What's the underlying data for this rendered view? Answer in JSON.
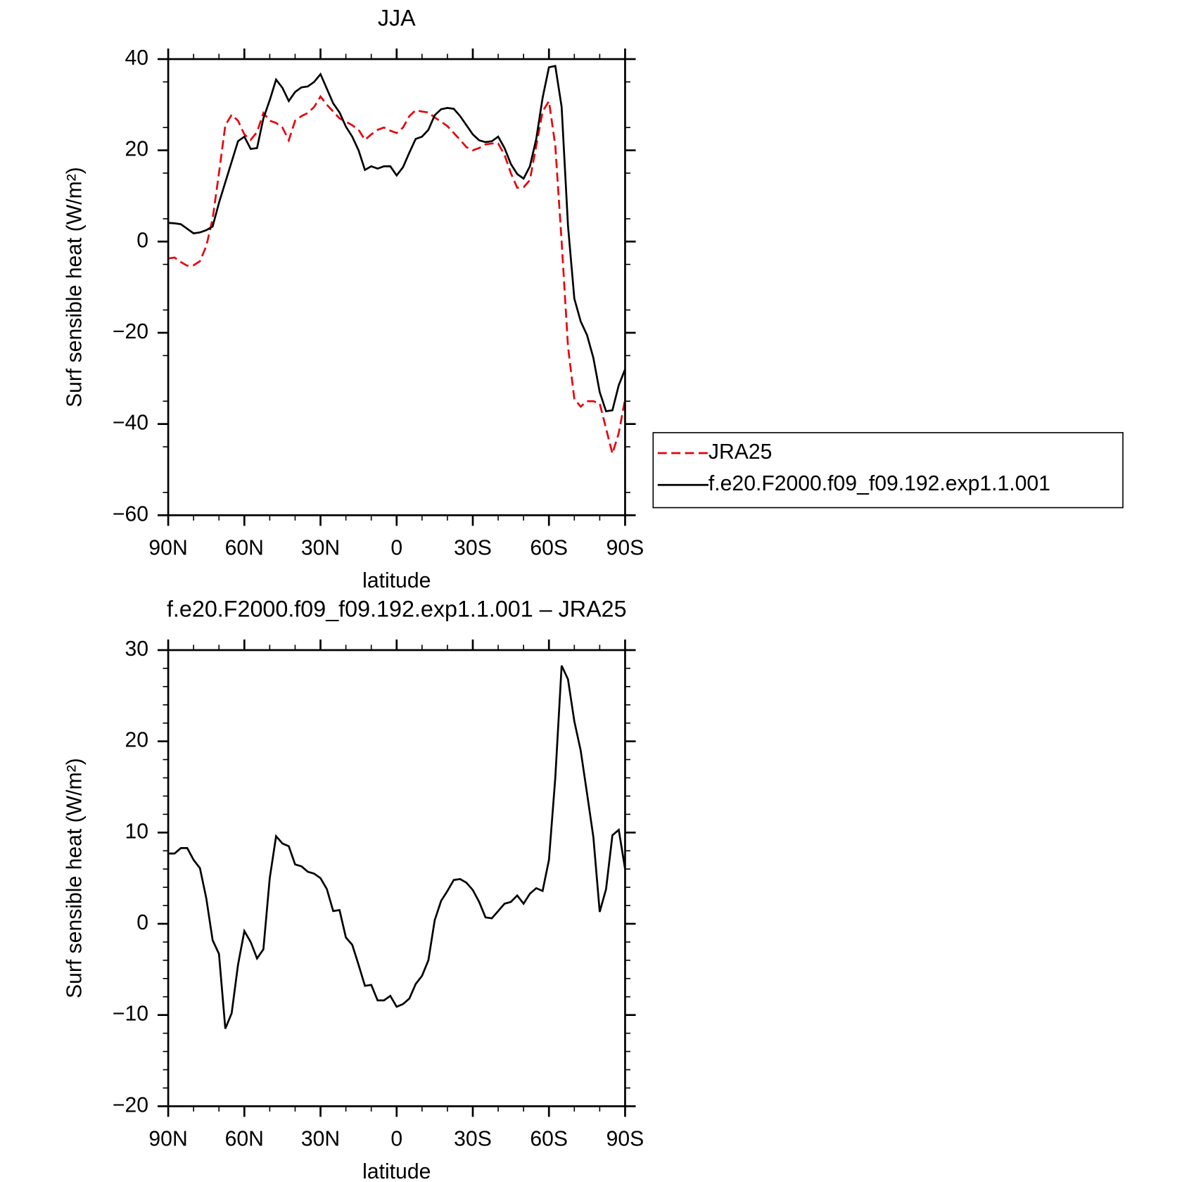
{
  "chart_data": [
    {
      "type": "line",
      "title": "JJA",
      "xlabel": "latitude",
      "ylabel": "Surf sensible heat (W/m²)",
      "x": [
        90,
        87.5,
        85,
        82.5,
        80,
        77.5,
        75,
        72.5,
        70,
        67.5,
        65,
        62.5,
        60,
        57.5,
        55,
        52.5,
        50,
        47.5,
        45,
        42.5,
        40,
        37.5,
        35,
        32.5,
        30,
        27.5,
        25,
        22.5,
        20,
        17.5,
        15,
        12.5,
        10,
        7.5,
        5,
        2.5,
        0,
        -2.5,
        -5,
        -7.5,
        -10,
        -12.5,
        -15,
        -17.5,
        -20,
        -22.5,
        -25,
        -27.5,
        -30,
        -32.5,
        -35,
        -37.5,
        -40,
        -42.5,
        -45,
        -47.5,
        -50,
        -52.5,
        -55,
        -57.5,
        -60,
        -62.5,
        -65,
        -67.5,
        -70,
        -72.5,
        -75,
        -77.5,
        -80,
        -82.5,
        -85,
        -87.5,
        -90
      ],
      "series": [
        {
          "name": "JRA25",
          "color": "#e8000b",
          "linestyle": "dashed",
          "values": [
            -3.7,
            -3.5,
            -4.5,
            -5.3,
            -5.2,
            -4.3,
            -1,
            5,
            15,
            25.5,
            27.8,
            26.5,
            23.5,
            22.3,
            24,
            28.2,
            26.5,
            26,
            25,
            22.2,
            26.5,
            27.5,
            28.2,
            29.5,
            31.8,
            30,
            28.5,
            27,
            26.3,
            25.5,
            24.5,
            22.3,
            23.5,
            24.5,
            25,
            24.3,
            23.8,
            25,
            27.5,
            28.8,
            28.5,
            28.3,
            27.2,
            26.3,
            25.3,
            23.8,
            22.3,
            20.7,
            20,
            20.5,
            21.3,
            21.5,
            21.5,
            19,
            15,
            11.8,
            11.9,
            13.5,
            21,
            28.5,
            30.8,
            21,
            0,
            -23,
            -34.5,
            -36.2,
            -35,
            -35,
            -35.5,
            -41,
            -46.5,
            -42,
            -34.5
          ]
        },
        {
          "name": "f.e20.F2000.f09_f09.192.exp1.1.001",
          "color": "#000000",
          "linestyle": "solid",
          "values": [
            4.1,
            4,
            3.8,
            2.8,
            1.8,
            2,
            2.5,
            3.3,
            8.5,
            13,
            17.5,
            22,
            23,
            20.3,
            20.5,
            27,
            31,
            35.5,
            33.7,
            30.8,
            32.8,
            33.8,
            34,
            35,
            36.7,
            33.5,
            30.3,
            28.3,
            25.2,
            23,
            20,
            15.7,
            16.5,
            16,
            16.5,
            16.5,
            14.5,
            16.3,
            19.5,
            22.5,
            23,
            24.5,
            27.7,
            29,
            29.3,
            29.1,
            27.5,
            25.5,
            23.5,
            22.2,
            21.8,
            22,
            23,
            20.5,
            17,
            14.8,
            13.8,
            16.5,
            22.5,
            31.5,
            38.2,
            38.5,
            29.5,
            3.5,
            -12.5,
            -17.5,
            -20.5,
            -25.5,
            -33,
            -37.2,
            -37,
            -31.5,
            -28
          ]
        }
      ],
      "xlim": [
        90,
        -90
      ],
      "xticks": [
        {
          "value": 90,
          "label": "90N"
        },
        {
          "value": 60,
          "label": "60N"
        },
        {
          "value": 30,
          "label": "30N"
        },
        0,
        {
          "value": -30,
          "label": "30S"
        },
        {
          "value": -60,
          "label": "60S"
        },
        {
          "value": -90,
          "label": "90S"
        }
      ],
      "xminorticks": [
        80,
        70,
        50,
        40,
        20,
        10,
        -10,
        -20,
        -40,
        -50,
        -70,
        -80
      ],
      "ylim": [
        -60,
        40
      ],
      "yticks": [
        {
          "value": -60,
          "label": "−60"
        },
        {
          "value": -40,
          "label": "−40"
        },
        {
          "value": -20,
          "label": "−20"
        },
        0,
        20,
        40
      ],
      "yminorticks": [
        35,
        25,
        15,
        5,
        -5,
        -15,
        -25,
        -35,
        -45,
        -55
      ]
    },
    {
      "type": "line",
      "title": "f.e20.F2000.f09_f09.192.exp1.1.001 – JRA25",
      "xlabel": "latitude",
      "ylabel": "Surf sensible heat (W/m²)",
      "x": [
        90,
        87.5,
        85,
        82.5,
        80,
        77.5,
        75,
        72.5,
        70,
        67.5,
        65,
        62.5,
        60,
        57.5,
        55,
        52.5,
        50,
        47.5,
        45,
        42.5,
        40,
        37.5,
        35,
        32.5,
        30,
        27.5,
        25,
        22.5,
        20,
        17.5,
        15,
        12.5,
        10,
        7.5,
        5,
        2.5,
        0,
        -2.5,
        -5,
        -7.5,
        -10,
        -12.5,
        -15,
        -17.5,
        -20,
        -22.5,
        -25,
        -27.5,
        -30,
        -32.5,
        -35,
        -37.5,
        -40,
        -42.5,
        -45,
        -47.5,
        -50,
        -52.5,
        -55,
        -57.5,
        -60,
        -62.5,
        -65,
        -67.5,
        -70,
        -72.5,
        -75,
        -77.5,
        -80,
        -82.5,
        -85,
        -87.5,
        -90
      ],
      "color": "#000000",
      "linestyle": "solid",
      "values": [
        7.7,
        7.7,
        8.3,
        8.3,
        7,
        6.1,
        2.8,
        -1.8,
        -3.3,
        -11.5,
        -9.8,
        -4.5,
        -0.8,
        -2,
        -3.8,
        -2.8,
        5,
        9.6,
        8.8,
        8.5,
        6.5,
        6.3,
        5.7,
        5.5,
        5,
        3.8,
        1.4,
        1.5,
        -1.5,
        -2.3,
        -4.5,
        -6.8,
        -6.7,
        -8.4,
        -8.4,
        -7.9,
        -9.1,
        -8.8,
        -8.2,
        -6.6,
        -5.7,
        -4,
        0.4,
        2.5,
        3.6,
        4.8,
        4.9,
        4.5,
        3.7,
        2.4,
        0.7,
        0.6,
        1.4,
        2.2,
        2.4,
        3.1,
        2.2,
        3.3,
        3.9,
        3.6,
        7,
        16,
        28.3,
        26.8,
        22.2,
        19,
        14.3,
        9.5,
        1.3,
        3.8,
        9.7,
        10.3,
        6
      ],
      "xlim": [
        90,
        -90
      ],
      "xticks": [
        {
          "value": 90,
          "label": "90N"
        },
        {
          "value": 60,
          "label": "60N"
        },
        {
          "value": 30,
          "label": "30N"
        },
        0,
        {
          "value": -30,
          "label": "30S"
        },
        {
          "value": -60,
          "label": "60S"
        },
        {
          "value": -90,
          "label": "90S"
        }
      ],
      "xminorticks": [
        80,
        70,
        50,
        40,
        20,
        10,
        -10,
        -20,
        -40,
        -50,
        -70,
        -80
      ],
      "ylim": [
        -20,
        30
      ],
      "yticks": [
        {
          "value": -20,
          "label": "−20"
        },
        {
          "value": -10,
          "label": "−10"
        },
        0,
        10,
        20,
        30
      ],
      "yminorticks": [
        28,
        26,
        24,
        22,
        18,
        16,
        14,
        12,
        8,
        6,
        4,
        2,
        -2,
        -4,
        -6,
        -8,
        -12,
        -14,
        -16,
        -18
      ]
    }
  ]
}
